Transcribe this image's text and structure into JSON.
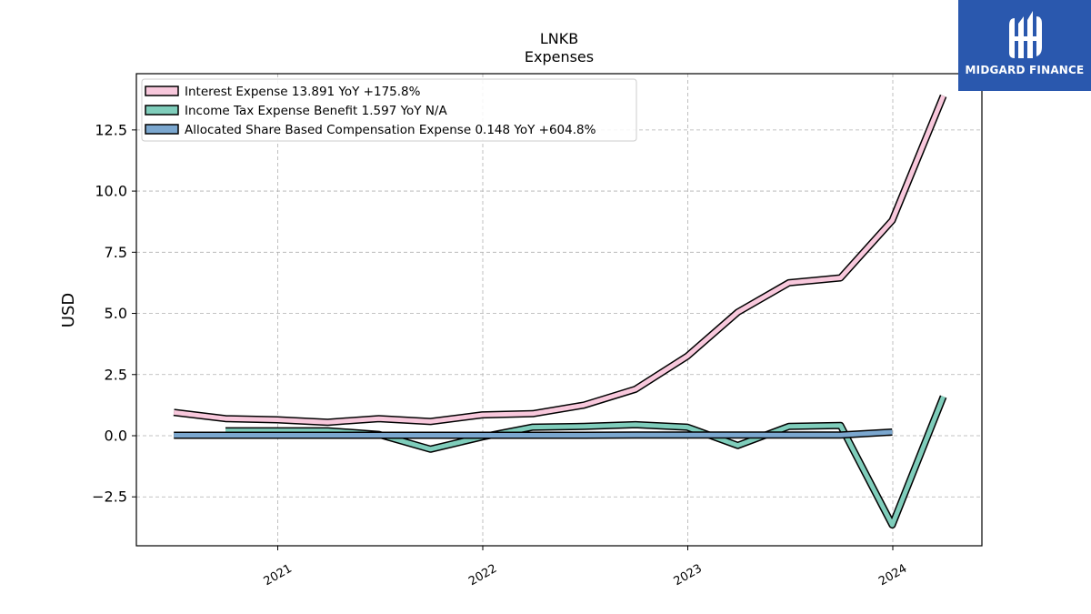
{
  "logo": {
    "text": "MIDGARD FINANCE"
  },
  "chart_data": {
    "type": "line",
    "title": "LNKB",
    "subtitle": "Expenses",
    "xlabel": "",
    "ylabel": "USD",
    "x_ticks": [
      "2021",
      "2022",
      "2023",
      "2024"
    ],
    "y_ticks": [
      "−2.5",
      "0.0",
      "2.5",
      "5.0",
      "7.5",
      "10.0",
      "12.5"
    ],
    "ylim": [
      -4.5,
      14.8
    ],
    "grid": true,
    "legend_position": "top-left",
    "series": [
      {
        "name": "Interest Expense",
        "legend": "Interest Expense  13.891 YoY +175.8%",
        "color": "#f8c8dc",
        "x": [
          "2020-06-30",
          "2020-09-30",
          "2020-12-31",
          "2021-03-31",
          "2021-06-30",
          "2021-09-30",
          "2021-12-31",
          "2022-03-31",
          "2022-06-30",
          "2022-09-30",
          "2022-12-31",
          "2023-03-31",
          "2023-06-30",
          "2023-09-30",
          "2023-12-31",
          "2024-03-31"
        ],
        "values": [
          0.95,
          0.7,
          0.65,
          0.55,
          0.7,
          0.58,
          0.85,
          0.9,
          1.25,
          1.9,
          3.25,
          5.05,
          6.25,
          6.45,
          8.8,
          13.891
        ]
      },
      {
        "name": "Income Tax Expense Benefit",
        "legend": "Income Tax Expense Benefit  1.597 YoY N/A",
        "color": "#7fcdbb",
        "x": [
          "2020-09-30",
          "2020-12-31",
          "2021-03-31",
          "2021-06-30",
          "2021-09-30",
          "2021-12-31",
          "2022-03-31",
          "2022-06-30",
          "2022-09-30",
          "2022-12-31",
          "2023-03-31",
          "2023-06-30",
          "2023-09-30",
          "2023-12-31",
          "2024-03-31"
        ],
        "values": [
          0.2,
          0.2,
          0.2,
          0.05,
          -0.55,
          -0.05,
          0.35,
          0.38,
          0.45,
          0.35,
          -0.4,
          0.38,
          0.42,
          -3.65,
          1.597
        ]
      },
      {
        "name": "Allocated Share Based Compensation Expense",
        "legend": "Allocated Share Based Compensation Expense  0.148 YoY +604.8%",
        "color": "#7ba7cf",
        "x": [
          "2020-06-30",
          "2020-09-30",
          "2020-12-31",
          "2021-03-31",
          "2021-06-30",
          "2021-09-30",
          "2021-12-31",
          "2022-03-31",
          "2022-06-30",
          "2022-09-30",
          "2022-12-31",
          "2023-03-31",
          "2023-06-30",
          "2023-09-30",
          "2023-12-31"
        ],
        "values": [
          0.02,
          0.02,
          0.02,
          0.02,
          0.02,
          0.02,
          0.02,
          0.02,
          0.02,
          0.03,
          0.03,
          0.03,
          0.03,
          0.03,
          0.148
        ]
      }
    ]
  }
}
